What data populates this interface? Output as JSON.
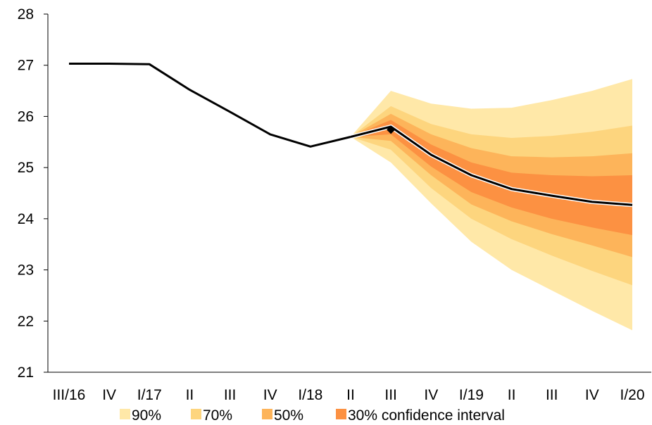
{
  "chart_data": {
    "type": "area",
    "title": "",
    "xlabel": "",
    "ylabel": "",
    "ylim": [
      21,
      28
    ],
    "yticks": [
      21,
      22,
      23,
      24,
      25,
      26,
      27,
      28
    ],
    "grid": false,
    "legend_position": "bottom",
    "categories": [
      "III/16",
      "IV",
      "I/17",
      "II",
      "III",
      "IV",
      "I/18",
      "II",
      "III",
      "IV",
      "I/19",
      "II",
      "III",
      "IV",
      "I/20"
    ],
    "history": {
      "x": [
        "III/16",
        "IV",
        "I/17",
        "II",
        "III",
        "IV",
        "I/18",
        "II"
      ],
      "values": [
        27.03,
        27.03,
        27.02,
        26.52,
        26.09,
        25.65,
        25.41,
        25.6
      ]
    },
    "forecast": {
      "x": [
        "II",
        "III",
        "IV",
        "I/19",
        "II",
        "III",
        "IV",
        "I/20"
      ],
      "values": [
        25.6,
        25.8,
        25.25,
        24.85,
        24.58,
        24.45,
        24.33,
        24.27
      ]
    },
    "marker": {
      "x": "III",
      "value": 25.74
    },
    "bands": [
      {
        "name": "90%",
        "color": "#ffe8a8",
        "upper": [
          25.6,
          26.5,
          26.25,
          26.15,
          26.17,
          26.32,
          26.5,
          26.73
        ],
        "lower": [
          25.6,
          25.1,
          24.3,
          23.55,
          23.0,
          22.6,
          22.2,
          21.82
        ]
      },
      {
        "name": "70%",
        "color": "#fdd57e",
        "upper": [
          25.6,
          26.2,
          25.85,
          25.65,
          25.58,
          25.62,
          25.7,
          25.82
        ]
      },
      {
        "name": "70%-lower",
        "color": "#fdd57e",
        "lower": [
          25.6,
          25.35,
          24.6,
          24.0,
          23.6,
          23.28,
          22.98,
          22.7
        ]
      },
      {
        "name": "50%",
        "color": "#fdb45a",
        "upper": [
          25.6,
          26.05,
          25.65,
          25.38,
          25.22,
          25.2,
          25.22,
          25.28
        ]
      },
      {
        "name": "50%-lower",
        "color": "#fdb45a",
        "lower": [
          25.6,
          25.52,
          24.85,
          24.28,
          23.95,
          23.7,
          23.48,
          23.25
        ]
      },
      {
        "name": "30%",
        "color": "#fc9142",
        "upper": [
          25.6,
          25.93,
          25.45,
          25.1,
          24.9,
          24.85,
          24.83,
          24.85
        ]
      },
      {
        "name": "30%-lower",
        "color": "#fc9142",
        "lower": [
          25.6,
          25.65,
          25.02,
          24.52,
          24.22,
          24.0,
          23.83,
          23.68
        ]
      }
    ],
    "legend": [
      {
        "label": "90%",
        "color": "#ffe8a8"
      },
      {
        "label": "70%",
        "color": "#fdd57e"
      },
      {
        "label": "50%",
        "color": "#fdb45a"
      },
      {
        "label": "30% confidence interval",
        "color": "#fc9142"
      }
    ]
  }
}
